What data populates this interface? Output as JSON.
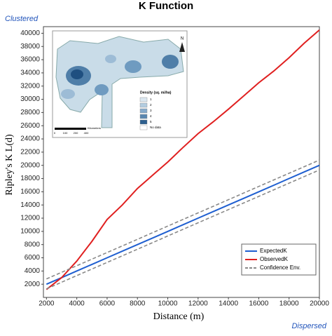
{
  "chart_data": {
    "type": "line",
    "title": "K Function",
    "x_label": "Distance (m)",
    "y_label": "Ripley's K L(d)",
    "annotations": {
      "top_left": "Clustered",
      "bottom_right": "Dispersed"
    },
    "x": [
      2000,
      3000,
      4000,
      5000,
      6000,
      7000,
      8000,
      9000,
      10000,
      11000,
      12000,
      13000,
      14000,
      15000,
      16000,
      17000,
      18000,
      19000,
      20000
    ],
    "series": [
      {
        "name": "ExpectedK",
        "color": "#1f5fd0",
        "dash": false,
        "values": [
          2000,
          3000,
          4000,
          5000,
          6000,
          7000,
          8000,
          9000,
          10000,
          11000,
          12000,
          13000,
          14000,
          15000,
          16000,
          17000,
          18000,
          19000,
          20000
        ]
      },
      {
        "name": "ObservedK",
        "color": "#e02020",
        "dash": false,
        "values": [
          1200,
          3000,
          5500,
          8500,
          11800,
          14000,
          16500,
          18500,
          20500,
          22700,
          24800,
          26600,
          28500,
          30500,
          32500,
          34300,
          36300,
          38500,
          40500
        ]
      },
      {
        "name": "Confidence Env.",
        "color": "#888888",
        "dash": true,
        "values": [
          2800,
          3800,
          4800,
          5800,
          6800,
          7800,
          8800,
          9800,
          10800,
          11800,
          12800,
          13800,
          14800,
          15800,
          16800,
          17800,
          18800,
          19800,
          20800
        ],
        "lower": [
          1300,
          2300,
          3300,
          4300,
          5300,
          6300,
          7300,
          8300,
          9300,
          10300,
          11300,
          12300,
          13300,
          14300,
          15300,
          16300,
          17300,
          18300,
          19300
        ]
      }
    ],
    "xlim": [
      1800,
      20000
    ],
    "ylim": [
      0,
      41000
    ],
    "xticks": [
      2000,
      4000,
      6000,
      8000,
      10000,
      12000,
      14000,
      16000,
      18000,
      20000
    ],
    "yticks": [
      2000,
      4000,
      6000,
      8000,
      10000,
      12000,
      14000,
      16000,
      18000,
      20000,
      22000,
      24000,
      26000,
      28000,
      30000,
      32000,
      34000,
      36000,
      38000,
      40000
    ],
    "grid": false,
    "legend": "lower-right",
    "inset": {
      "legend_title": "Density (sq. mi/ha)",
      "classes": [
        "1",
        "2",
        "3",
        "4",
        "5"
      ],
      "no_data": "No data",
      "scale_label": "Kilometers",
      "scale_ticks": [
        "0",
        "100",
        "200",
        "400"
      ],
      "north": "N"
    }
  }
}
